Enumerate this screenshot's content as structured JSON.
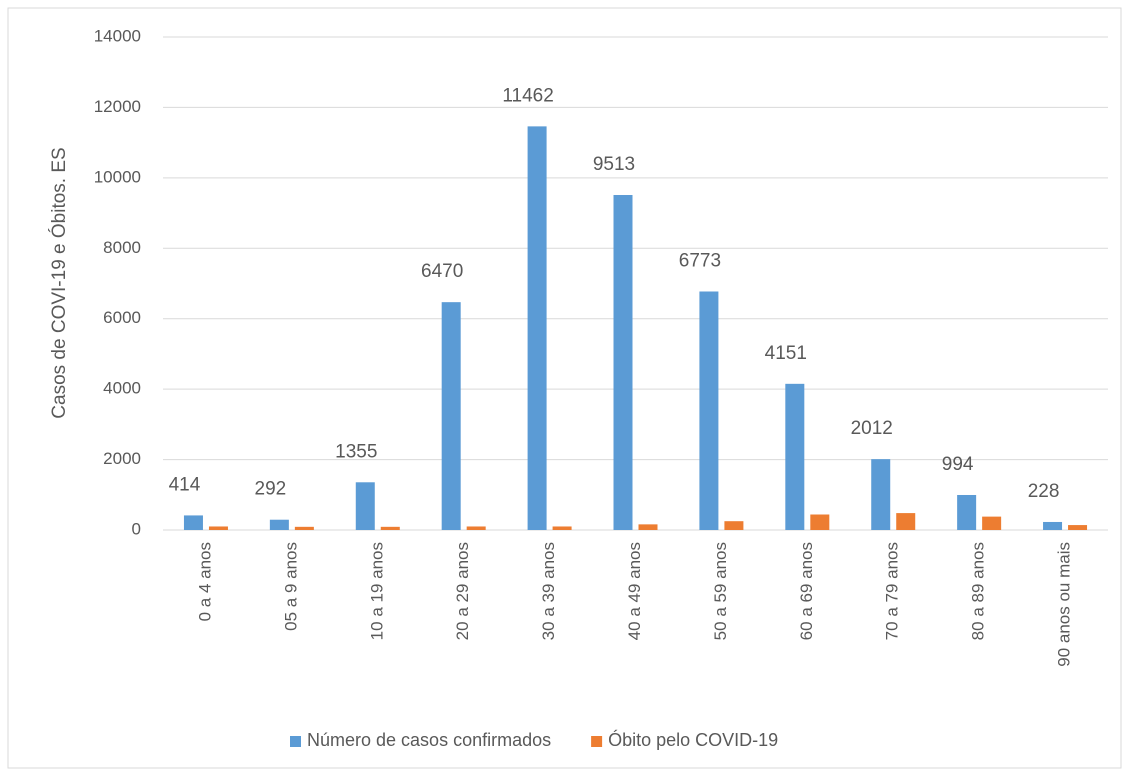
{
  "chart_data": {
    "type": "bar",
    "y_axis_label": "Casos de COVI-19 e Óbitos. ES",
    "categories": [
      "0 a 4 anos",
      "05 a 9 anos",
      "10 a 19 anos",
      "20 a 29 anos",
      "30 a 39 anos",
      "40 a 49 anos",
      "50 a 59 anos",
      "60 a 69 anos",
      "70 a 79 anos",
      "80 a 89 anos",
      "90 anos ou mais"
    ],
    "series": [
      {
        "name": "Número de casos confirmados",
        "color": "#5b9bd5",
        "values": [
          414,
          292,
          1355,
          6470,
          11462,
          9513,
          6773,
          4151,
          2012,
          994,
          228
        ]
      },
      {
        "name": "Óbito pelo COVID-19",
        "color": "#ed7d31",
        "values": [
          100,
          90,
          90,
          100,
          100,
          160,
          250,
          440,
          480,
          380,
          140
        ]
      }
    ],
    "ylim": [
      0,
      14000
    ],
    "yticks": [
      0,
      2000,
      4000,
      6000,
      8000,
      10000,
      12000,
      14000
    ],
    "grid": true,
    "legend": "bottom"
  }
}
